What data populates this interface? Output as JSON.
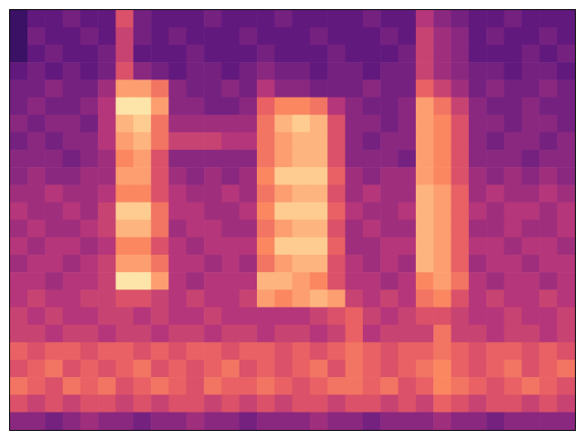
{
  "chart_data": {
    "type": "heatmap",
    "tick_labels": false,
    "zlim": [
      0,
      1
    ],
    "cells": [
      [
        0.2,
        0.3,
        0.3,
        0.35,
        0.3,
        0.3,
        0.6,
        0.35,
        0.3,
        0.3,
        0.3,
        0.35,
        0.3,
        0.3,
        0.3,
        0.35,
        0.3,
        0.3,
        0.3,
        0.3,
        0.35,
        0.3,
        0.3,
        0.5,
        0.4,
        0.35,
        0.3,
        0.3,
        0.35,
        0.3,
        0.3,
        0.3
      ],
      [
        0.2,
        0.35,
        0.3,
        0.3,
        0.35,
        0.3,
        0.55,
        0.35,
        0.3,
        0.35,
        0.3,
        0.3,
        0.3,
        0.35,
        0.3,
        0.3,
        0.3,
        0.35,
        0.3,
        0.3,
        0.3,
        0.35,
        0.3,
        0.55,
        0.45,
        0.4,
        0.3,
        0.35,
        0.3,
        0.3,
        0.35,
        0.3
      ],
      [
        0.2,
        0.3,
        0.35,
        0.3,
        0.3,
        0.35,
        0.55,
        0.3,
        0.3,
        0.3,
        0.35,
        0.3,
        0.3,
        0.3,
        0.35,
        0.3,
        0.3,
        0.3,
        0.35,
        0.3,
        0.3,
        0.3,
        0.35,
        0.55,
        0.45,
        0.4,
        0.3,
        0.3,
        0.3,
        0.35,
        0.3,
        0.35
      ],
      [
        0.3,
        0.35,
        0.3,
        0.35,
        0.3,
        0.35,
        0.6,
        0.4,
        0.35,
        0.3,
        0.35,
        0.35,
        0.3,
        0.35,
        0.4,
        0.35,
        0.35,
        0.3,
        0.35,
        0.35,
        0.3,
        0.35,
        0.35,
        0.55,
        0.45,
        0.4,
        0.35,
        0.35,
        0.3,
        0.35,
        0.35,
        0.3
      ],
      [
        0.35,
        0.35,
        0.4,
        0.35,
        0.35,
        0.45,
        0.8,
        0.8,
        0.7,
        0.4,
        0.35,
        0.35,
        0.4,
        0.35,
        0.5,
        0.4,
        0.4,
        0.35,
        0.35,
        0.35,
        0.4,
        0.35,
        0.35,
        0.65,
        0.55,
        0.45,
        0.35,
        0.4,
        0.35,
        0.35,
        0.4,
        0.35
      ],
      [
        0.35,
        0.4,
        0.35,
        0.35,
        0.4,
        0.5,
        0.95,
        0.95,
        0.8,
        0.4,
        0.4,
        0.35,
        0.35,
        0.4,
        0.65,
        0.75,
        0.75,
        0.7,
        0.5,
        0.4,
        0.35,
        0.35,
        0.4,
        0.8,
        0.7,
        0.55,
        0.4,
        0.35,
        0.35,
        0.4,
        0.35,
        0.35
      ],
      [
        0.4,
        0.35,
        0.4,
        0.4,
        0.35,
        0.5,
        0.85,
        0.9,
        0.7,
        0.45,
        0.45,
        0.45,
        0.45,
        0.45,
        0.7,
        0.85,
        0.9,
        0.85,
        0.6,
        0.4,
        0.4,
        0.35,
        0.4,
        0.8,
        0.75,
        0.6,
        0.4,
        0.4,
        0.35,
        0.4,
        0.4,
        0.35
      ],
      [
        0.35,
        0.4,
        0.35,
        0.4,
        0.4,
        0.5,
        0.8,
        0.85,
        0.7,
        0.55,
        0.55,
        0.55,
        0.5,
        0.5,
        0.7,
        0.8,
        0.85,
        0.85,
        0.6,
        0.4,
        0.35,
        0.4,
        0.4,
        0.8,
        0.75,
        0.6,
        0.4,
        0.35,
        0.4,
        0.4,
        0.35,
        0.4
      ],
      [
        0.4,
        0.4,
        0.4,
        0.35,
        0.4,
        0.45,
        0.75,
        0.8,
        0.6,
        0.4,
        0.4,
        0.4,
        0.4,
        0.4,
        0.7,
        0.8,
        0.85,
        0.85,
        0.6,
        0.4,
        0.4,
        0.4,
        0.35,
        0.8,
        0.75,
        0.6,
        0.4,
        0.4,
        0.4,
        0.35,
        0.4,
        0.4
      ],
      [
        0.4,
        0.45,
        0.4,
        0.4,
        0.45,
        0.45,
        0.8,
        0.8,
        0.6,
        0.45,
        0.4,
        0.45,
        0.4,
        0.45,
        0.75,
        0.9,
        0.9,
        0.9,
        0.65,
        0.45,
        0.4,
        0.45,
        0.45,
        0.8,
        0.75,
        0.6,
        0.45,
        0.4,
        0.45,
        0.4,
        0.45,
        0.4
      ],
      [
        0.45,
        0.45,
        0.5,
        0.45,
        0.45,
        0.5,
        0.75,
        0.75,
        0.6,
        0.5,
        0.45,
        0.45,
        0.5,
        0.45,
        0.7,
        0.8,
        0.85,
        0.85,
        0.6,
        0.45,
        0.5,
        0.45,
        0.45,
        0.85,
        0.8,
        0.65,
        0.45,
        0.5,
        0.45,
        0.45,
        0.5,
        0.45
      ],
      [
        0.5,
        0.45,
        0.45,
        0.5,
        0.45,
        0.55,
        0.9,
        0.9,
        0.7,
        0.5,
        0.5,
        0.45,
        0.45,
        0.5,
        0.75,
        0.9,
        0.9,
        0.9,
        0.65,
        0.5,
        0.45,
        0.45,
        0.5,
        0.85,
        0.8,
        0.65,
        0.5,
        0.45,
        0.5,
        0.5,
        0.45,
        0.5
      ],
      [
        0.45,
        0.5,
        0.45,
        0.45,
        0.5,
        0.55,
        0.85,
        0.85,
        0.7,
        0.45,
        0.5,
        0.5,
        0.45,
        0.45,
        0.7,
        0.8,
        0.85,
        0.85,
        0.6,
        0.45,
        0.5,
        0.45,
        0.45,
        0.85,
        0.8,
        0.65,
        0.45,
        0.45,
        0.5,
        0.45,
        0.45,
        0.5
      ],
      [
        0.5,
        0.45,
        0.5,
        0.5,
        0.45,
        0.5,
        0.75,
        0.75,
        0.6,
        0.5,
        0.45,
        0.5,
        0.5,
        0.5,
        0.75,
        0.9,
        0.9,
        0.9,
        0.65,
        0.45,
        0.45,
        0.5,
        0.5,
        0.85,
        0.8,
        0.65,
        0.5,
        0.5,
        0.45,
        0.5,
        0.5,
        0.45
      ],
      [
        0.45,
        0.5,
        0.5,
        0.45,
        0.5,
        0.55,
        0.8,
        0.8,
        0.7,
        0.5,
        0.5,
        0.45,
        0.5,
        0.45,
        0.7,
        0.8,
        0.85,
        0.85,
        0.6,
        0.5,
        0.45,
        0.5,
        0.45,
        0.85,
        0.8,
        0.65,
        0.45,
        0.5,
        0.5,
        0.45,
        0.5,
        0.5
      ],
      [
        0.5,
        0.5,
        0.45,
        0.5,
        0.5,
        0.55,
        0.95,
        0.95,
        0.8,
        0.5,
        0.45,
        0.5,
        0.5,
        0.5,
        0.85,
        0.85,
        0.8,
        0.75,
        0.6,
        0.5,
        0.5,
        0.45,
        0.5,
        0.75,
        0.8,
        0.7,
        0.5,
        0.45,
        0.5,
        0.5,
        0.45,
        0.5
      ],
      [
        0.5,
        0.55,
        0.5,
        0.5,
        0.55,
        0.55,
        0.6,
        0.6,
        0.55,
        0.5,
        0.55,
        0.5,
        0.5,
        0.55,
        0.8,
        0.75,
        0.8,
        0.85,
        0.8,
        0.55,
        0.5,
        0.55,
        0.5,
        0.7,
        0.75,
        0.6,
        0.5,
        0.55,
        0.5,
        0.5,
        0.55,
        0.5
      ],
      [
        0.55,
        0.5,
        0.55,
        0.5,
        0.5,
        0.55,
        0.55,
        0.5,
        0.55,
        0.5,
        0.5,
        0.55,
        0.5,
        0.5,
        0.5,
        0.5,
        0.5,
        0.55,
        0.6,
        0.65,
        0.55,
        0.5,
        0.55,
        0.6,
        0.6,
        0.55,
        0.5,
        0.5,
        0.55,
        0.5,
        0.5,
        0.55
      ],
      [
        0.55,
        0.55,
        0.5,
        0.55,
        0.55,
        0.5,
        0.55,
        0.55,
        0.5,
        0.55,
        0.55,
        0.5,
        0.55,
        0.55,
        0.5,
        0.55,
        0.55,
        0.5,
        0.55,
        0.65,
        0.5,
        0.55,
        0.55,
        0.55,
        0.7,
        0.55,
        0.55,
        0.5,
        0.55,
        0.55,
        0.5,
        0.55
      ],
      [
        0.65,
        0.6,
        0.65,
        0.65,
        0.6,
        0.65,
        0.65,
        0.6,
        0.65,
        0.6,
        0.65,
        0.65,
        0.6,
        0.65,
        0.65,
        0.6,
        0.65,
        0.6,
        0.65,
        0.7,
        0.65,
        0.6,
        0.65,
        0.65,
        0.7,
        0.65,
        0.6,
        0.65,
        0.65,
        0.6,
        0.65,
        0.6
      ],
      [
        0.6,
        0.65,
        0.7,
        0.6,
        0.65,
        0.6,
        0.65,
        0.7,
        0.6,
        0.65,
        0.6,
        0.65,
        0.7,
        0.6,
        0.65,
        0.6,
        0.65,
        0.7,
        0.6,
        0.7,
        0.65,
        0.6,
        0.65,
        0.7,
        0.75,
        0.65,
        0.6,
        0.65,
        0.7,
        0.6,
        0.65,
        0.7
      ],
      [
        0.7,
        0.65,
        0.6,
        0.7,
        0.65,
        0.7,
        0.6,
        0.65,
        0.7,
        0.65,
        0.6,
        0.7,
        0.65,
        0.65,
        0.7,
        0.65,
        0.6,
        0.65,
        0.7,
        0.7,
        0.65,
        0.7,
        0.6,
        0.65,
        0.75,
        0.7,
        0.65,
        0.6,
        0.65,
        0.7,
        0.65,
        0.6
      ],
      [
        0.6,
        0.55,
        0.6,
        0.55,
        0.6,
        0.6,
        0.55,
        0.6,
        0.55,
        0.6,
        0.6,
        0.55,
        0.6,
        0.55,
        0.6,
        0.55,
        0.6,
        0.6,
        0.55,
        0.6,
        0.6,
        0.55,
        0.6,
        0.55,
        0.65,
        0.6,
        0.55,
        0.6,
        0.6,
        0.55,
        0.6,
        0.55
      ],
      [
        0.4,
        0.4,
        0.35,
        0.4,
        0.45,
        0.4,
        0.4,
        0.35,
        0.4,
        0.4,
        0.45,
        0.4,
        0.4,
        0.35,
        0.4,
        0.4,
        0.4,
        0.45,
        0.4,
        0.4,
        0.35,
        0.4,
        0.4,
        0.4,
        0.45,
        0.4,
        0.4,
        0.35,
        0.4,
        0.4,
        0.4,
        0.4
      ]
    ]
  }
}
